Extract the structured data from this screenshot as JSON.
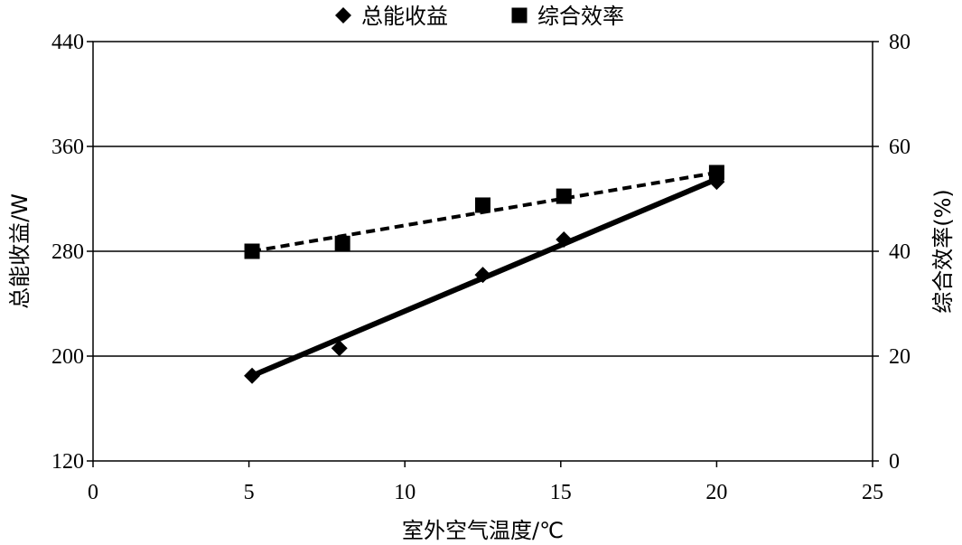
{
  "chart_data": {
    "type": "scatter",
    "x_axis": {
      "label": "室外空气温度/℃",
      "range": [
        0,
        25
      ],
      "ticks": [
        0,
        5,
        10,
        15,
        20,
        25
      ],
      "tick_labels": [
        "0",
        "5",
        "10",
        "15",
        "20",
        "25"
      ]
    },
    "y_axis_left": {
      "label": "总能收益/W",
      "range": [
        120,
        440
      ],
      "ticks": [
        120,
        200,
        280,
        360,
        440
      ],
      "tick_labels": [
        "120",
        "200",
        "280",
        "360",
        "440"
      ]
    },
    "y_axis_right": {
      "label": "综合效率(%)",
      "range": [
        0,
        80
      ],
      "ticks": [
        0,
        20,
        40,
        60,
        80
      ],
      "tick_labels": [
        "0",
        "20",
        "40",
        "60",
        "80"
      ]
    },
    "grid": {
      "horizontal": true,
      "vertical": false
    },
    "legend": {
      "position": "top"
    },
    "series": [
      {
        "name": "总能收益",
        "axis": "left",
        "marker": "diamond",
        "points": [
          [
            5.1,
            185
          ],
          [
            7.9,
            206
          ],
          [
            12.5,
            262
          ],
          [
            15.1,
            289
          ],
          [
            20.0,
            333
          ]
        ],
        "trendline": {
          "style": "solid",
          "from": [
            5.1,
            185
          ],
          "to": [
            20.0,
            335
          ]
        }
      },
      {
        "name": "综合效率",
        "axis": "right",
        "marker": "square",
        "points": [
          [
            5.1,
            40.0
          ],
          [
            8.0,
            41.5
          ],
          [
            12.5,
            48.8
          ],
          [
            15.1,
            50.5
          ],
          [
            20.0,
            55.0
          ]
        ],
        "trendline": {
          "style": "dashed",
          "from": [
            5.1,
            40.0
          ],
          "to": [
            20.0,
            55.0
          ]
        }
      }
    ]
  }
}
